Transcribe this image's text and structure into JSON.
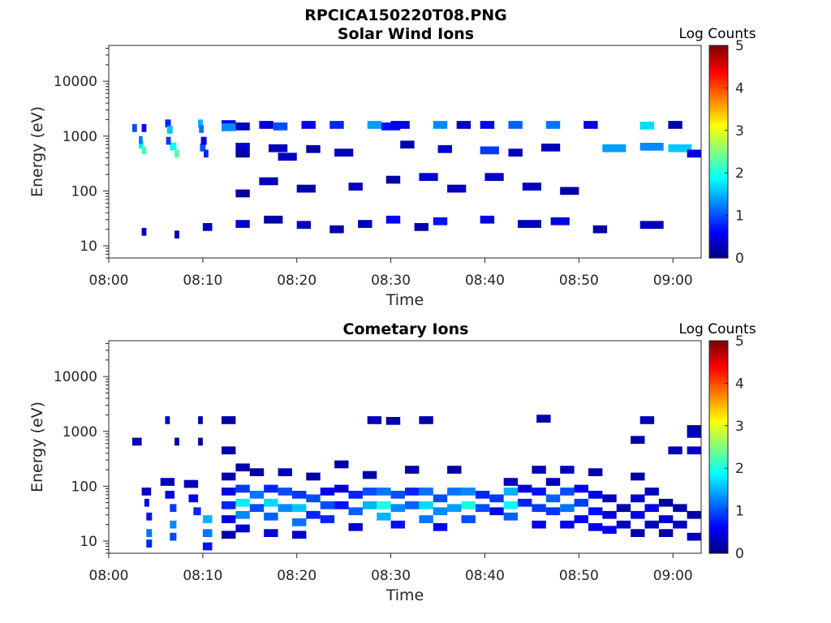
{
  "figure_title": "RPCICA150220T08.PNG",
  "chart_data": [
    {
      "type": "heatmap",
      "title": "Solar Wind Ions",
      "xlabel": "Time",
      "ylabel": "Energy (eV)",
      "x_tick_labels": [
        "08:00",
        "08:10",
        "08:20",
        "08:30",
        "08:40",
        "08:50",
        "09:00"
      ],
      "x_ticks_min": [
        0,
        10,
        20,
        30,
        40,
        50,
        60
      ],
      "xlim_min": [
        0,
        63
      ],
      "y_tick_labels": [
        "10",
        "100",
        "1000",
        "10000"
      ],
      "y_ticks": [
        10,
        100,
        1000,
        10000
      ],
      "ylim": [
        6,
        45000
      ],
      "y_scale": "log",
      "colorbar": {
        "label": "Log Counts",
        "range": [
          0,
          5
        ],
        "tick_labels": [
          "0",
          "1",
          "2",
          "3",
          "4",
          "5"
        ],
        "colormap": "jet"
      },
      "cells": [
        [
          2.5,
          3.0,
          1400,
          1.0
        ],
        [
          3.5,
          4.0,
          1400,
          0.6
        ],
        [
          3.2,
          3.7,
          700,
          1.8
        ],
        [
          3.5,
          4.0,
          550,
          2.2
        ],
        [
          3.2,
          3.6,
          850,
          1.2
        ],
        [
          6.0,
          6.6,
          1700,
          0.8
        ],
        [
          6.2,
          6.8,
          1300,
          1.6
        ],
        [
          6.5,
          7.2,
          650,
          1.9
        ],
        [
          7.0,
          7.5,
          480,
          2.3
        ],
        [
          6.1,
          6.6,
          820,
          0.9
        ],
        [
          9.5,
          10.0,
          1700,
          1.5
        ],
        [
          9.6,
          10.1,
          1350,
          1.2
        ],
        [
          9.7,
          10.3,
          620,
          1.0
        ],
        [
          10.1,
          10.6,
          480,
          0.8
        ],
        [
          9.8,
          10.4,
          820,
          0.5
        ],
        [
          12.0,
          13.5,
          1650,
          0.5
        ],
        [
          12.0,
          13.5,
          1450,
          1.3
        ],
        [
          13.5,
          15.0,
          1500,
          0.3
        ],
        [
          13.5,
          15.0,
          640,
          0.4
        ],
        [
          13.5,
          15.0,
          480,
          0.2
        ],
        [
          16.0,
          17.5,
          1600,
          0.4
        ],
        [
          17.5,
          19.0,
          1500,
          1.0
        ],
        [
          17.0,
          19.0,
          600,
          0.3
        ],
        [
          18.0,
          20.0,
          420,
          0.3
        ],
        [
          20.5,
          22.0,
          1600,
          0.6
        ],
        [
          21.0,
          22.5,
          580,
          0.2
        ],
        [
          23.5,
          25.0,
          1600,
          0.8
        ],
        [
          24.0,
          26.0,
          500,
          0.3
        ],
        [
          27.5,
          29.0,
          1600,
          1.4
        ],
        [
          29.0,
          31.0,
          1500,
          0.7
        ],
        [
          30.0,
          32.0,
          1600,
          0.5
        ],
        [
          31.0,
          32.5,
          700,
          0.2
        ],
        [
          34.5,
          36.0,
          1600,
          1.3
        ],
        [
          35.0,
          36.5,
          580,
          0.4
        ],
        [
          37.0,
          38.5,
          1600,
          0.3
        ],
        [
          39.5,
          41.0,
          1600,
          0.6
        ],
        [
          39.5,
          41.5,
          550,
          0.9
        ],
        [
          42.5,
          44.0,
          1600,
          1.1
        ],
        [
          42.5,
          44.0,
          500,
          0.3
        ],
        [
          46.5,
          48.0,
          1600,
          1.2
        ],
        [
          46.0,
          48.0,
          620,
          0.3
        ],
        [
          50.5,
          52.0,
          1600,
          0.5
        ],
        [
          52.5,
          55.0,
          600,
          1.4
        ],
        [
          56.5,
          58.0,
          1550,
          1.7
        ],
        [
          56.5,
          59.0,
          640,
          1.3
        ],
        [
          59.5,
          61.0,
          1600,
          0.2
        ],
        [
          59.5,
          62.0,
          600,
          1.6
        ],
        [
          61.5,
          63.0,
          480,
          0.5
        ],
        [
          13.5,
          15.0,
          90,
          0.2
        ],
        [
          16.0,
          18.0,
          150,
          0.3
        ],
        [
          20.0,
          22.0,
          110,
          0.2
        ],
        [
          25.5,
          27.0,
          120,
          0.3
        ],
        [
          29.5,
          31.0,
          160,
          0.2
        ],
        [
          33.0,
          35.0,
          180,
          0.4
        ],
        [
          36.0,
          38.0,
          110,
          0.3
        ],
        [
          40.0,
          42.0,
          180,
          0.3
        ],
        [
          44.0,
          46.0,
          120,
          0.3
        ],
        [
          48.0,
          50.0,
          100,
          0.2
        ],
        [
          3.5,
          4.0,
          18,
          0.3
        ],
        [
          7.0,
          7.5,
          16,
          0.2
        ],
        [
          10.0,
          11.0,
          22,
          0.3
        ],
        [
          13.5,
          15.0,
          25,
          0.4
        ],
        [
          16.5,
          18.5,
          30,
          0.2
        ],
        [
          20.0,
          21.5,
          24,
          0.3
        ],
        [
          23.5,
          25.0,
          20,
          0.2
        ],
        [
          26.5,
          28.0,
          25,
          0.3
        ],
        [
          29.5,
          31.0,
          30,
          0.6
        ],
        [
          32.5,
          34.0,
          22,
          0.2
        ],
        [
          34.5,
          36.0,
          28,
          0.7
        ],
        [
          39.5,
          41.0,
          30,
          0.5
        ],
        [
          43.5,
          46.0,
          25,
          0.3
        ],
        [
          47.0,
          49.0,
          28,
          0.5
        ],
        [
          51.5,
          53.0,
          20,
          0.2
        ],
        [
          56.5,
          59.0,
          24,
          0.3
        ]
      ]
    },
    {
      "type": "heatmap",
      "title": "Cometary Ions",
      "xlabel": "Time",
      "ylabel": "Energy (eV)",
      "x_tick_labels": [
        "08:00",
        "08:10",
        "08:20",
        "08:30",
        "08:40",
        "08:50",
        "09:00"
      ],
      "x_ticks_min": [
        0,
        10,
        20,
        30,
        40,
        50,
        60
      ],
      "xlim_min": [
        0,
        63
      ],
      "y_tick_labels": [
        "10",
        "100",
        "1000",
        "10000"
      ],
      "y_ticks": [
        10,
        100,
        1000,
        10000
      ],
      "ylim": [
        6,
        45000
      ],
      "y_scale": "log",
      "colorbar": {
        "label": "Log Counts",
        "range": [
          0,
          5
        ],
        "tick_labels": [
          "0",
          "1",
          "2",
          "3",
          "4",
          "5"
        ],
        "colormap": "jet"
      },
      "cells": [
        [
          2.5,
          3.5,
          650,
          0.3
        ],
        [
          6.0,
          6.5,
          1600,
          0.3
        ],
        [
          7.0,
          7.5,
          650,
          0.2
        ],
        [
          9.5,
          10.0,
          1600,
          0.2
        ],
        [
          9.5,
          10.0,
          650,
          0.2
        ],
        [
          12.0,
          13.5,
          1600,
          0.2
        ],
        [
          12.0,
          13.5,
          450,
          0.2
        ],
        [
          27.5,
          29.0,
          1600,
          0.3
        ],
        [
          29.5,
          31.0,
          1550,
          0.2
        ],
        [
          33.0,
          34.5,
          1600,
          0.2
        ],
        [
          45.5,
          47.0,
          1700,
          0.2
        ],
        [
          56.5,
          58.0,
          1600,
          0.3
        ],
        [
          61.5,
          63.0,
          1100,
          0.2
        ],
        [
          61.5,
          63.0,
          900,
          0.3
        ],
        [
          55.5,
          57.0,
          700,
          0.2
        ],
        [
          59.5,
          61.0,
          450,
          0.3
        ],
        [
          61.5,
          63.0,
          450,
          0.4
        ],
        [
          3.5,
          4.5,
          80,
          0.4
        ],
        [
          3.8,
          4.3,
          50,
          0.5
        ],
        [
          4.0,
          4.6,
          28,
          0.7
        ],
        [
          4.0,
          4.6,
          14,
          1.2
        ],
        [
          4.0,
          4.6,
          9,
          0.8
        ],
        [
          5.5,
          7.0,
          120,
          0.3
        ],
        [
          6.0,
          7.0,
          70,
          0.5
        ],
        [
          6.5,
          7.2,
          40,
          0.9
        ],
        [
          6.5,
          7.2,
          20,
          1.3
        ],
        [
          6.5,
          7.2,
          12,
          1.0
        ],
        [
          8.0,
          9.5,
          110,
          0.3
        ],
        [
          8.5,
          9.5,
          60,
          0.6
        ],
        [
          9.0,
          9.8,
          35,
          0.8
        ],
        [
          10.0,
          11.0,
          25,
          1.5
        ],
        [
          10.0,
          11.0,
          14,
          1.2
        ],
        [
          10.0,
          11.0,
          8,
          0.7
        ],
        [
          12.0,
          13.5,
          150,
          0.2
        ],
        [
          12.0,
          13.5,
          80,
          0.5
        ],
        [
          12.0,
          13.5,
          45,
          0.8
        ],
        [
          12.0,
          13.5,
          25,
          0.5
        ],
        [
          12.0,
          13.5,
          13,
          0.2
        ],
        [
          13.5,
          15.0,
          220,
          0.2
        ],
        [
          13.5,
          15.0,
          90,
          0.9
        ],
        [
          13.5,
          15.0,
          50,
          1.8
        ],
        [
          13.5,
          15.0,
          30,
          1.3
        ],
        [
          13.5,
          15.0,
          17,
          0.4
        ],
        [
          15.0,
          16.5,
          180,
          0.2
        ],
        [
          15.0,
          16.5,
          70,
          1.2
        ],
        [
          15.0,
          16.5,
          40,
          1.0
        ],
        [
          16.5,
          18.0,
          90,
          0.8
        ],
        [
          16.5,
          18.0,
          50,
          1.7
        ],
        [
          16.5,
          18.0,
          28,
          1.1
        ],
        [
          16.5,
          18.0,
          14,
          0.4
        ],
        [
          18.0,
          19.5,
          180,
          0.3
        ],
        [
          18.0,
          19.5,
          80,
          1.0
        ],
        [
          18.0,
          19.5,
          40,
          1.3
        ],
        [
          19.5,
          21.0,
          70,
          0.9
        ],
        [
          19.5,
          21.0,
          40,
          1.6
        ],
        [
          19.5,
          21.0,
          22,
          1.2
        ],
        [
          19.5,
          21.0,
          13,
          0.4
        ],
        [
          21.0,
          22.5,
          150,
          0.2
        ],
        [
          21.0,
          22.5,
          60,
          1.0
        ],
        [
          21.0,
          22.5,
          30,
          0.8
        ],
        [
          22.5,
          24.0,
          80,
          0.6
        ],
        [
          22.5,
          24.0,
          45,
          1.0
        ],
        [
          22.5,
          24.0,
          25,
          0.8
        ],
        [
          24.0,
          25.5,
          250,
          0.2
        ],
        [
          24.0,
          25.5,
          90,
          0.4
        ],
        [
          24.0,
          25.5,
          45,
          0.7
        ],
        [
          25.5,
          27.0,
          70,
          0.8
        ],
        [
          25.5,
          27.0,
          35,
          1.1
        ],
        [
          25.5,
          27.0,
          18,
          0.4
        ],
        [
          27.0,
          28.5,
          160,
          0.2
        ],
        [
          27.0,
          28.5,
          80,
          1.0
        ],
        [
          27.0,
          28.5,
          45,
          1.5
        ],
        [
          28.5,
          30.0,
          80,
          1.2
        ],
        [
          28.5,
          30.0,
          45,
          2.0
        ],
        [
          28.5,
          30.0,
          28,
          1.5
        ],
        [
          30.0,
          31.5,
          70,
          1.0
        ],
        [
          30.0,
          31.5,
          40,
          1.3
        ],
        [
          30.0,
          31.5,
          20,
          0.7
        ],
        [
          31.5,
          33.0,
          200,
          0.2
        ],
        [
          31.5,
          33.0,
          80,
          0.8
        ],
        [
          31.5,
          33.0,
          45,
          1.1
        ],
        [
          33.0,
          34.5,
          80,
          1.2
        ],
        [
          33.0,
          34.5,
          45,
          1.7
        ],
        [
          33.0,
          34.5,
          25,
          1.2
        ],
        [
          34.5,
          36.0,
          60,
          1.0
        ],
        [
          34.5,
          36.0,
          35,
          1.3
        ],
        [
          34.5,
          36.0,
          18,
          0.6
        ],
        [
          36.0,
          37.5,
          200,
          0.2
        ],
        [
          36.0,
          37.5,
          80,
          1.2
        ],
        [
          36.0,
          37.5,
          40,
          1.4
        ],
        [
          37.5,
          39.0,
          80,
          1.3
        ],
        [
          37.5,
          39.0,
          45,
          2.0
        ],
        [
          37.5,
          39.0,
          25,
          1.0
        ],
        [
          39.0,
          40.5,
          70,
          0.8
        ],
        [
          39.0,
          40.5,
          40,
          1.0
        ],
        [
          40.5,
          42.0,
          60,
          0.9
        ],
        [
          40.5,
          42.0,
          35,
          0.6
        ],
        [
          42.0,
          43.5,
          120,
          0.3
        ],
        [
          42.0,
          43.5,
          80,
          1.5
        ],
        [
          42.0,
          43.5,
          45,
          1.9
        ],
        [
          42.0,
          43.5,
          28,
          1.1
        ],
        [
          43.5,
          45.0,
          90,
          0.5
        ],
        [
          43.5,
          45.0,
          50,
          0.8
        ],
        [
          45.0,
          46.5,
          200,
          0.3
        ],
        [
          45.0,
          46.5,
          80,
          0.7
        ],
        [
          45.0,
          46.5,
          40,
          0.9
        ],
        [
          45.0,
          46.5,
          20,
          0.5
        ],
        [
          46.5,
          48.0,
          120,
          0.3
        ],
        [
          46.5,
          48.0,
          60,
          1.1
        ],
        [
          46.5,
          48.0,
          35,
          0.9
        ],
        [
          48.0,
          49.5,
          200,
          0.3
        ],
        [
          48.0,
          49.5,
          80,
          1.0
        ],
        [
          48.0,
          49.5,
          40,
          1.2
        ],
        [
          48.0,
          49.5,
          20,
          0.6
        ],
        [
          49.5,
          51.0,
          90,
          0.6
        ],
        [
          49.5,
          51.0,
          50,
          0.9
        ],
        [
          49.5,
          51.0,
          25,
          0.6
        ],
        [
          51.0,
          52.5,
          180,
          0.2
        ],
        [
          51.0,
          52.5,
          70,
          0.5
        ],
        [
          51.0,
          52.5,
          35,
          0.7
        ],
        [
          51.0,
          52.5,
          18,
          0.5
        ],
        [
          52.5,
          54.0,
          60,
          0.3
        ],
        [
          52.5,
          54.0,
          30,
          0.4
        ],
        [
          52.5,
          54.0,
          16,
          0.6
        ],
        [
          54.0,
          55.5,
          40,
          0.2
        ],
        [
          54.0,
          55.5,
          20,
          0.3
        ],
        [
          55.5,
          57.0,
          150,
          0.2
        ],
        [
          55.5,
          57.0,
          60,
          0.4
        ],
        [
          55.5,
          57.0,
          30,
          0.5
        ],
        [
          55.5,
          57.0,
          14,
          0.2
        ],
        [
          57.0,
          58.5,
          80,
          0.3
        ],
        [
          57.0,
          58.5,
          40,
          0.5
        ],
        [
          57.0,
          58.5,
          20,
          0.3
        ],
        [
          58.5,
          60.0,
          50,
          0.2
        ],
        [
          58.5,
          60.0,
          25,
          0.4
        ],
        [
          58.5,
          60.0,
          14,
          0.2
        ],
        [
          60.0,
          61.5,
          40,
          0.2
        ],
        [
          60.0,
          61.5,
          20,
          0.3
        ],
        [
          61.5,
          63.0,
          30,
          0.2
        ],
        [
          61.5,
          63.0,
          12,
          0.3
        ]
      ]
    }
  ]
}
